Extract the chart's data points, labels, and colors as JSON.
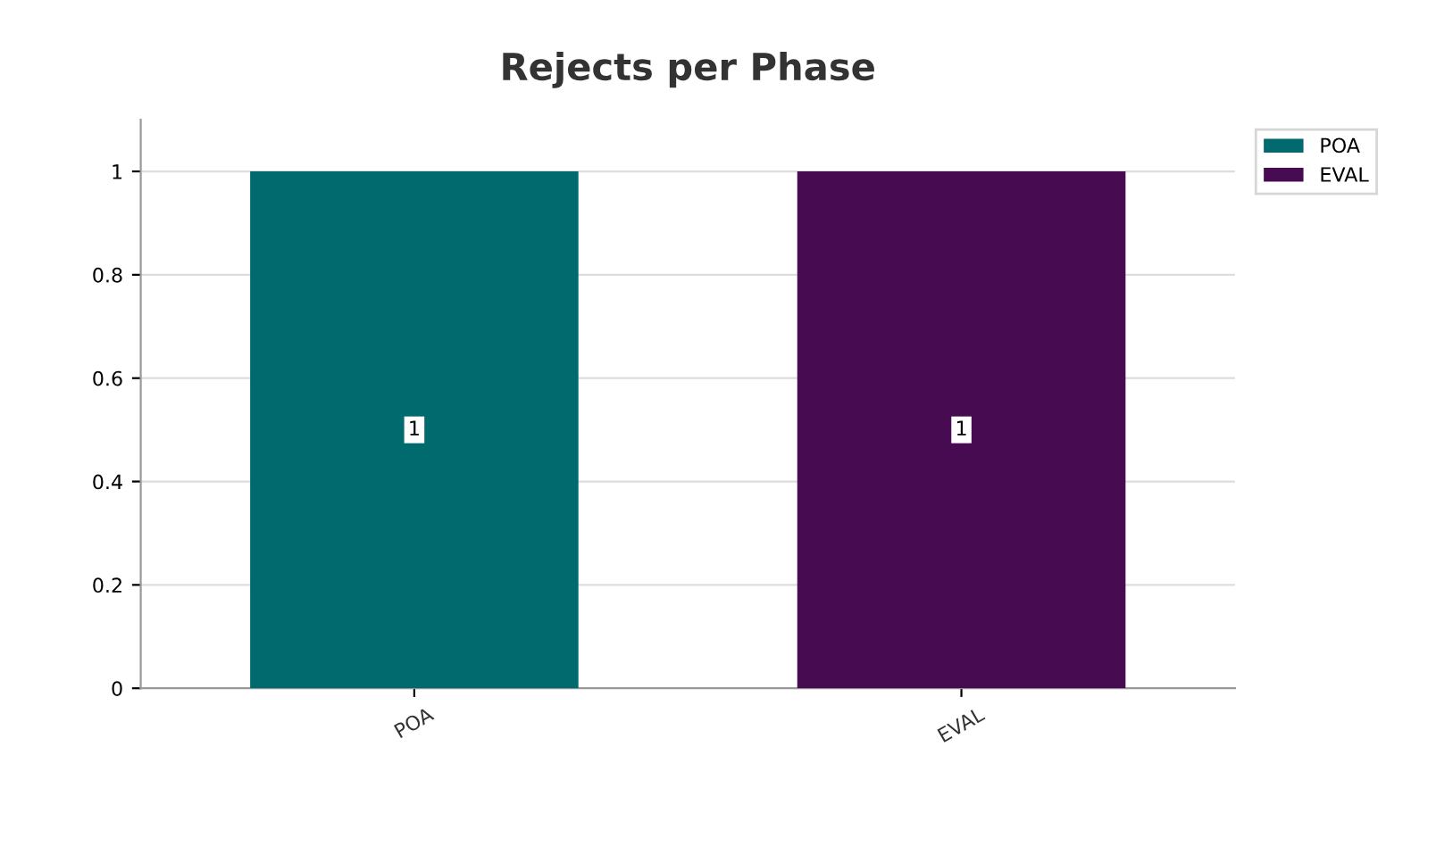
{
  "chart_data": {
    "type": "bar",
    "title": "Rejects per Phase",
    "categories": [
      "POA",
      "EVAL"
    ],
    "series": [
      {
        "name": "POA",
        "color": "#006a6f",
        "values": [
          1,
          null
        ]
      },
      {
        "name": "EVAL",
        "color": "#470b52",
        "values": [
          null,
          1
        ]
      }
    ],
    "ylim": [
      0,
      1.1
    ],
    "yticks": [
      0,
      0.2,
      0.4,
      0.6,
      0.8,
      1
    ],
    "grid": "y",
    "legend": "top right",
    "data_labels": true
  }
}
